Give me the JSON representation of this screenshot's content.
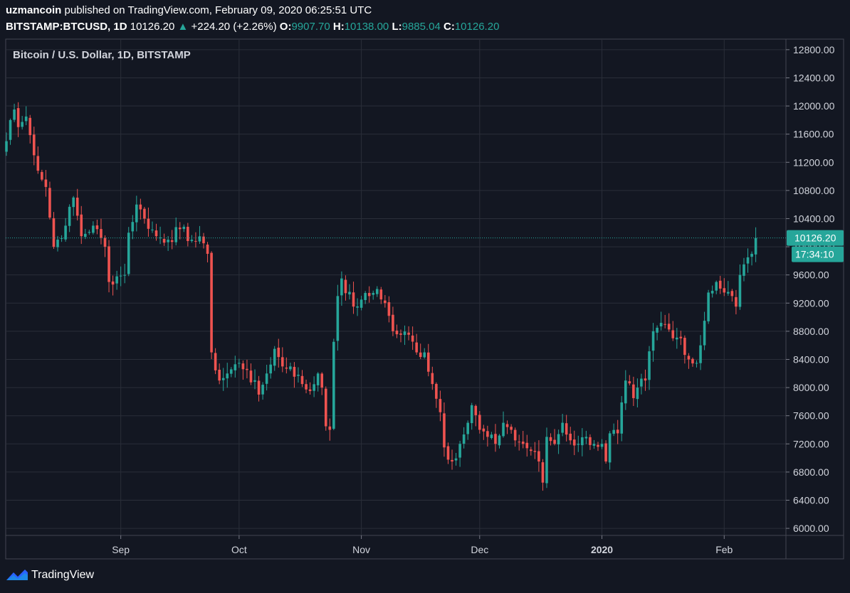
{
  "header": {
    "author": "uzmancoin",
    "published_text": "published on TradingView.com, February 09, 2020 06:25:51 UTC",
    "symbol": "BITSTAMP:BTCUSD, 1D",
    "last": "10126.20",
    "change": "+224.20 (+2.26%)",
    "o_label": "O:",
    "o_value": "9907.70",
    "h_label": "H:",
    "h_value": "10138.00",
    "l_label": "L:",
    "l_value": "9885.04",
    "c_label": "C:",
    "c_value": "10126.20"
  },
  "colors": {
    "background": "#131722",
    "grid": "#2a2e39",
    "up": "#26a69a",
    "down": "#ef5350",
    "text": "#d1d4dc"
  },
  "price_label": "10126.20",
  "countdown_label": "17:34:10",
  "footer": {
    "brand": "TradingView",
    "icon": "tradingview-logo-icon"
  },
  "chart_data": {
    "type": "candlestick",
    "title": "Bitcoin / U.S. Dollar, 1D, BITSTAMP",
    "ylim": [
      5900,
      12950
    ],
    "y_ticks": [
      "12800.00",
      "12400.00",
      "12000.00",
      "11600.00",
      "11200.00",
      "10800.00",
      "10400.00",
      "10000.00",
      "9600.00",
      "9200.00",
      "8800.00",
      "8400.00",
      "8000.00",
      "7600.00",
      "7200.00",
      "6800.00",
      "6400.00",
      "6000.00"
    ],
    "x_ticks": [
      {
        "label": "Sep",
        "date": "2019-09-01"
      },
      {
        "label": "Oct",
        "date": "2019-10-01"
      },
      {
        "label": "Nov",
        "date": "2019-11-01"
      },
      {
        "label": "Dec",
        "date": "2019-12-01"
      },
      {
        "label": "2020",
        "date": "2020-01-01",
        "bold": true
      },
      {
        "label": "Feb",
        "date": "2020-02-01"
      }
    ],
    "first_date": "2019-08-03",
    "last_price": 10126.2,
    "close_anchors": [
      [
        "2019-08-03",
        11500
      ],
      [
        "2019-08-04",
        11800
      ],
      [
        "2019-08-05",
        11950
      ],
      [
        "2019-08-06",
        11700
      ],
      [
        "2019-08-08",
        11850
      ],
      [
        "2019-08-10",
        11300
      ],
      [
        "2019-08-13",
        10850
      ],
      [
        "2019-08-15",
        10000
      ],
      [
        "2019-08-18",
        10300
      ],
      [
        "2019-08-20",
        10700
      ],
      [
        "2019-08-22",
        10150
      ],
      [
        "2019-08-25",
        10300
      ],
      [
        "2019-08-28",
        10000
      ],
      [
        "2019-08-29",
        9500
      ],
      [
        "2019-08-31",
        9580
      ],
      [
        "2019-09-02",
        9600
      ],
      [
        "2019-09-03",
        10200
      ],
      [
        "2019-09-05",
        10600
      ],
      [
        "2019-09-07",
        10400
      ],
      [
        "2019-09-10",
        10150
      ],
      [
        "2019-09-13",
        10100
      ],
      [
        "2019-09-16",
        10250
      ],
      [
        "2019-09-19",
        10100
      ],
      [
        "2019-09-22",
        10050
      ],
      [
        "2019-09-23",
        9900
      ],
      [
        "2019-09-24",
        8500
      ],
      [
        "2019-09-26",
        8100
      ],
      [
        "2019-09-28",
        8200
      ],
      [
        "2019-10-01",
        8350
      ],
      [
        "2019-10-03",
        8250
      ],
      [
        "2019-10-06",
        7900
      ],
      [
        "2019-10-08",
        8200
      ],
      [
        "2019-10-10",
        8550
      ],
      [
        "2019-10-12",
        8300
      ],
      [
        "2019-10-14",
        8300
      ],
      [
        "2019-10-17",
        8050
      ],
      [
        "2019-10-19",
        7950
      ],
      [
        "2019-10-21",
        8200
      ],
      [
        "2019-10-22",
        8000
      ],
      [
        "2019-10-23",
        7450
      ],
      [
        "2019-10-24",
        7400
      ],
      [
        "2019-10-25",
        8650
      ],
      [
        "2019-10-26",
        9300
      ],
      [
        "2019-10-27",
        9550
      ],
      [
        "2019-10-30",
        9150
      ],
      [
        "2019-11-01",
        9250
      ],
      [
        "2019-11-03",
        9300
      ],
      [
        "2019-11-05",
        9400
      ],
      [
        "2019-11-07",
        9200
      ],
      [
        "2019-11-09",
        8800
      ],
      [
        "2019-11-11",
        8750
      ],
      [
        "2019-11-13",
        8750
      ],
      [
        "2019-11-15",
        8500
      ],
      [
        "2019-11-17",
        8500
      ],
      [
        "2019-11-19",
        8050
      ],
      [
        "2019-11-21",
        7650
      ],
      [
        "2019-11-22",
        7150
      ],
      [
        "2019-11-24",
        6950
      ],
      [
        "2019-11-26",
        7200
      ],
      [
        "2019-11-28",
        7500
      ],
      [
        "2019-11-29",
        7750
      ],
      [
        "2019-12-01",
        7400
      ],
      [
        "2019-12-03",
        7300
      ],
      [
        "2019-12-05",
        7200
      ],
      [
        "2019-12-07",
        7500
      ],
      [
        "2019-12-09",
        7400
      ],
      [
        "2019-12-10",
        7250
      ],
      [
        "2019-12-12",
        7200
      ],
      [
        "2019-12-14",
        7100
      ],
      [
        "2019-12-16",
        6950
      ],
      [
        "2019-12-17",
        6650
      ],
      [
        "2019-12-18",
        7300
      ],
      [
        "2019-12-20",
        7200
      ],
      [
        "2019-12-22",
        7500
      ],
      [
        "2019-12-24",
        7250
      ],
      [
        "2019-12-26",
        7200
      ],
      [
        "2019-12-28",
        7300
      ],
      [
        "2019-12-30",
        7200
      ],
      [
        "2020-01-01",
        7200
      ],
      [
        "2020-01-02",
        6950
      ],
      [
        "2020-01-03",
        7350
      ],
      [
        "2020-01-05",
        7350
      ],
      [
        "2020-01-07",
        8100
      ],
      [
        "2020-01-09",
        7850
      ],
      [
        "2020-01-10",
        8000
      ],
      [
        "2020-01-12",
        8100
      ],
      [
        "2020-01-14",
        8800
      ],
      [
        "2020-01-15",
        8850
      ],
      [
        "2020-01-17",
        8900
      ],
      [
        "2020-01-19",
        8700
      ],
      [
        "2020-01-21",
        8700
      ],
      [
        "2020-01-23",
        8400
      ],
      [
        "2020-01-25",
        8350
      ],
      [
        "2020-01-26",
        8600
      ],
      [
        "2020-01-28",
        9350
      ],
      [
        "2020-01-30",
        9500
      ],
      [
        "2020-02-01",
        9350
      ],
      [
        "2020-02-03",
        9300
      ],
      [
        "2020-02-04",
        9150
      ],
      [
        "2020-02-05",
        9600
      ],
      [
        "2020-02-06",
        9750
      ],
      [
        "2020-02-07",
        9850
      ],
      [
        "2020-02-08",
        9900
      ],
      [
        "2020-02-09",
        10126.2
      ]
    ]
  }
}
